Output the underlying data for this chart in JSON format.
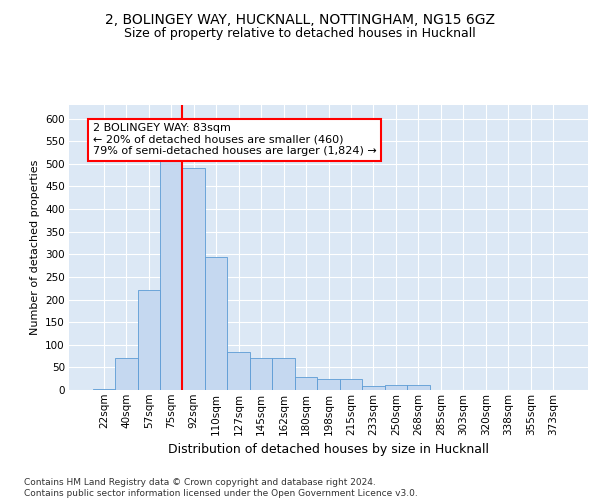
{
  "title_line1": "2, BOLINGEY WAY, HUCKNALL, NOTTINGHAM, NG15 6GZ",
  "title_line2": "Size of property relative to detached houses in Hucknall",
  "xlabel": "Distribution of detached houses by size in Hucknall",
  "ylabel": "Number of detached properties",
  "categories": [
    "22sqm",
    "40sqm",
    "57sqm",
    "75sqm",
    "92sqm",
    "110sqm",
    "127sqm",
    "145sqm",
    "162sqm",
    "180sqm",
    "198sqm",
    "215sqm",
    "233sqm",
    "250sqm",
    "268sqm",
    "285sqm",
    "303sqm",
    "320sqm",
    "338sqm",
    "355sqm",
    "373sqm"
  ],
  "values": [
    3,
    70,
    220,
    510,
    490,
    295,
    85,
    70,
    70,
    28,
    24,
    25,
    8,
    12,
    12,
    0,
    0,
    0,
    0,
    0,
    0
  ],
  "bar_color": "#c5d8f0",
  "bar_edge_color": "#5b9bd5",
  "vline_color": "red",
  "vline_x": 3.5,
  "annotation_text": "2 BOLINGEY WAY: 83sqm\n← 20% of detached houses are smaller (460)\n79% of semi-detached houses are larger (1,824) →",
  "annotation_box_color": "white",
  "annotation_box_edge": "red",
  "ylim": [
    0,
    630
  ],
  "yticks": [
    0,
    50,
    100,
    150,
    200,
    250,
    300,
    350,
    400,
    450,
    500,
    550,
    600
  ],
  "footer": "Contains HM Land Registry data © Crown copyright and database right 2024.\nContains public sector information licensed under the Open Government Licence v3.0.",
  "bg_color": "#dce8f5",
  "title_fontsize": 10,
  "subtitle_fontsize": 9,
  "xlabel_fontsize": 9,
  "ylabel_fontsize": 8,
  "tick_fontsize": 7.5,
  "annotation_fontsize": 8,
  "footer_fontsize": 6.5
}
